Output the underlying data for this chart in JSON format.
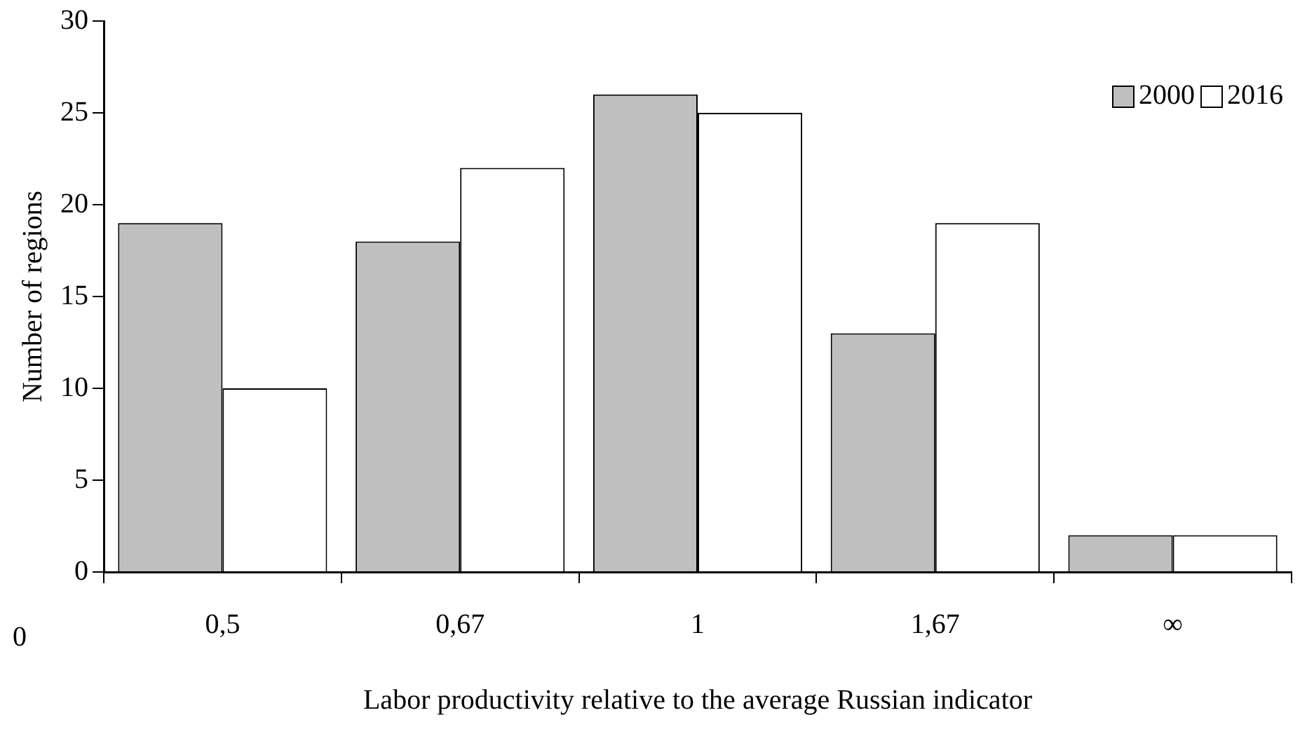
{
  "chart_data": {
    "type": "bar",
    "categories": [
      "0,5",
      "0,67",
      "1",
      "1,67",
      "∞"
    ],
    "series": [
      {
        "name": "2000",
        "color": "#bfbfbf",
        "values": [
          19,
          18,
          26,
          13,
          2
        ]
      },
      {
        "name": "2016",
        "color": "#ffffff",
        "values": [
          10,
          22,
          25,
          19,
          2
        ]
      }
    ],
    "xlabel": "Labor productivity relative to the average Russian indicator",
    "ylabel": "Number of regions",
    "ylim": [
      0,
      30
    ],
    "yticks": [
      0,
      5,
      10,
      15,
      20,
      25,
      30
    ],
    "annotations": [
      "0"
    ],
    "grid": false,
    "legend": "top right"
  }
}
